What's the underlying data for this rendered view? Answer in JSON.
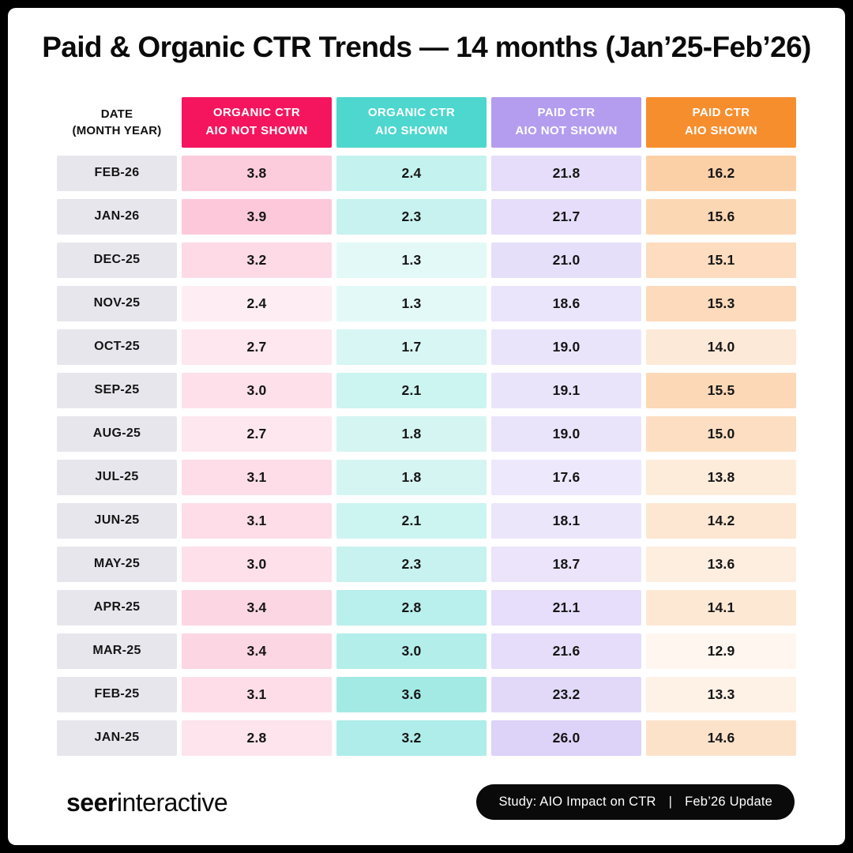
{
  "title": "Paid & Organic CTR Trends — 14 months (Jan’25-Feb’26)",
  "frame": {
    "border_color": "#000000",
    "card_color": "#FFFFFF"
  },
  "table": {
    "date_header": {
      "line1": "DATE",
      "line2": "(MONTH YEAR)"
    },
    "date_cell_color": "#E8E6ED",
    "columns": [
      {
        "id": "organic-ctr-aio-not-shown",
        "label_line1": "ORGANIC CTR",
        "label_line2": "AIO NOT SHOWN",
        "color": "#F5155F",
        "tint_min": 0.07,
        "tint_max": 0.23
      },
      {
        "id": "organic-ctr-aio-shown",
        "label_line1": "ORGANIC CTR",
        "label_line2": "AIO SHOWN",
        "color": "#4ED7CE",
        "tint_min": 0.16,
        "tint_max": 0.52
      },
      {
        "id": "paid-ctr-aio-not-shown",
        "label_line1": "PAID CTR",
        "label_line2": "AIO NOT SHOWN",
        "color": "#B49DEF",
        "tint_min": 0.24,
        "tint_max": 0.46
      },
      {
        "id": "paid-ctr-aio-shown",
        "label_line1": "PAID CTR",
        "label_line2": "AIO SHOWN",
        "color": "#F78E2E",
        "tint_min": 0.08,
        "tint_max": 0.42
      }
    ],
    "rows": [
      {
        "date": "FEB-26",
        "values": [
          3.8,
          2.4,
          21.8,
          16.2
        ]
      },
      {
        "date": "JAN-26",
        "values": [
          3.9,
          2.3,
          21.7,
          15.6
        ]
      },
      {
        "date": "DEC-25",
        "values": [
          3.2,
          1.3,
          21.0,
          15.1
        ]
      },
      {
        "date": "NOV-25",
        "values": [
          2.4,
          1.3,
          18.6,
          15.3
        ]
      },
      {
        "date": "OCT-25",
        "values": [
          2.7,
          1.7,
          19.0,
          14.0
        ]
      },
      {
        "date": "SEP-25",
        "values": [
          3.0,
          2.1,
          19.1,
          15.5
        ]
      },
      {
        "date": "AUG-25",
        "values": [
          2.7,
          1.8,
          19.0,
          15.0
        ]
      },
      {
        "date": "JUL-25",
        "values": [
          3.1,
          1.8,
          17.6,
          13.8
        ]
      },
      {
        "date": "JUN-25",
        "values": [
          3.1,
          2.1,
          18.1,
          14.2
        ]
      },
      {
        "date": "MAY-25",
        "values": [
          3.0,
          2.3,
          18.7,
          13.6
        ]
      },
      {
        "date": "APR-25",
        "values": [
          3.4,
          2.8,
          21.1,
          14.1
        ]
      },
      {
        "date": "MAR-25",
        "values": [
          3.4,
          3.0,
          21.6,
          12.9
        ]
      },
      {
        "date": "FEB-25",
        "values": [
          3.1,
          3.6,
          23.2,
          13.3
        ]
      },
      {
        "date": "JAN-25",
        "values": [
          2.8,
          3.2,
          26.0,
          14.6
        ]
      }
    ]
  },
  "footer": {
    "logo": {
      "bold": "seer",
      "light": "interactive"
    },
    "badge": {
      "study": "Study: AIO Impact on CTR",
      "separator": "|",
      "update": "Feb’26 Update",
      "bg": "#0A0A0A",
      "text_color": "#FFFFFF"
    }
  },
  "chart_data": {
    "type": "table",
    "title": "Paid & Organic CTR Trends — 14 months (Jan’25-Feb’26)",
    "categories": [
      "FEB-26",
      "JAN-26",
      "DEC-25",
      "NOV-25",
      "OCT-25",
      "SEP-25",
      "AUG-25",
      "JUL-25",
      "JUN-25",
      "MAY-25",
      "APR-25",
      "MAR-25",
      "FEB-25",
      "JAN-25"
    ],
    "series": [
      {
        "name": "ORGANIC CTR AIO NOT SHOWN",
        "values": [
          3.8,
          3.9,
          3.2,
          2.4,
          2.7,
          3.0,
          2.7,
          3.1,
          3.1,
          3.0,
          3.4,
          3.4,
          3.1,
          2.8
        ]
      },
      {
        "name": "ORGANIC CTR AIO SHOWN",
        "values": [
          2.4,
          2.3,
          1.3,
          1.3,
          1.7,
          2.1,
          1.8,
          1.8,
          2.1,
          2.3,
          2.8,
          3.0,
          3.6,
          3.2
        ]
      },
      {
        "name": "PAID CTR AIO NOT SHOWN",
        "values": [
          21.8,
          21.7,
          21.0,
          18.6,
          19.0,
          19.1,
          19.0,
          17.6,
          18.1,
          18.7,
          21.1,
          21.6,
          23.2,
          26.0
        ]
      },
      {
        "name": "PAID CTR AIO SHOWN",
        "values": [
          16.2,
          15.6,
          15.1,
          15.3,
          14.0,
          15.5,
          15.0,
          13.8,
          14.2,
          13.6,
          14.1,
          12.9,
          13.3,
          14.6
        ]
      }
    ],
    "notes": "Heatmap-tinted table; darker cell tint = higher value within each column"
  }
}
